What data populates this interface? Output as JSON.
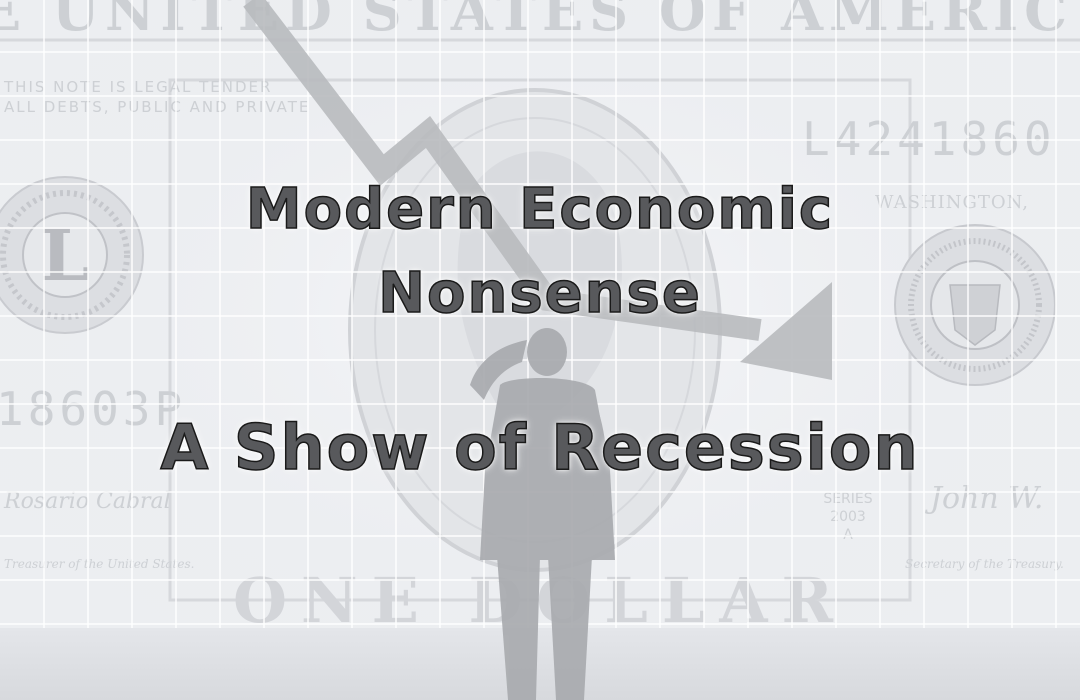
{
  "title": {
    "line1": "Modern Economic",
    "line2": "Nonsense"
  },
  "subtitle": "A Show of Recession",
  "banknote": {
    "header": "E UNITED STATES OF AMERIC",
    "legal_text_1": "THIS NOTE IS LEGAL TENDER",
    "legal_text_2": "ALL DEBTS, PUBLIC AND PRIVATE",
    "serial_top": "L4241860",
    "serial_left": "18603P",
    "city": "WASHINGTON,",
    "seal_letter": "L",
    "series_label": "SERIES",
    "series_year": "2003",
    "series_letter": "A",
    "signature_left": "Rosario Cabral",
    "signature_right": "John W.",
    "treasurer_label": "Treasurer of the United States.",
    "secretary_label": "Secretary of the Treasury.",
    "denomination": "ONE DOLLAR"
  },
  "colors": {
    "background": "#eceef1",
    "grid": "#ffffff",
    "arrow": "#b8babe",
    "text_fill": "#58595c",
    "text_outline": "#1a1a1a"
  },
  "icons": {
    "trend": "downward-trend-arrow-icon",
    "figure": "person-silhouette-icon"
  }
}
